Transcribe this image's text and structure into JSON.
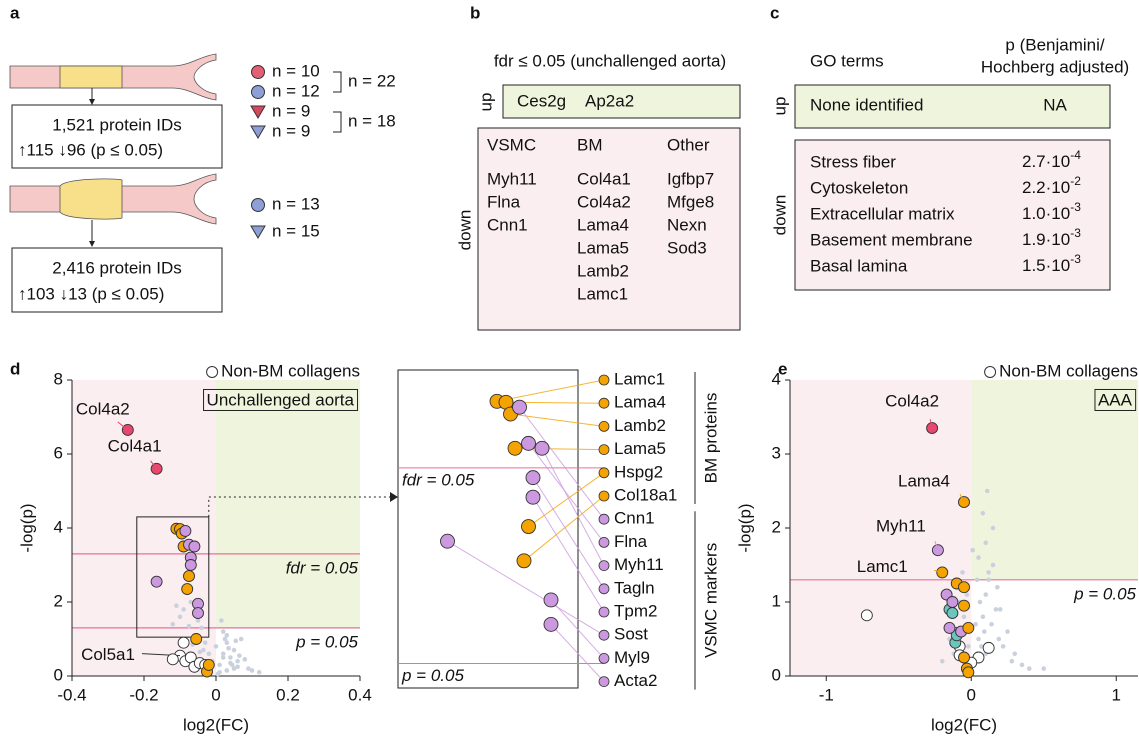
{
  "panel_a": {
    "label": "a",
    "groups": [
      {
        "legend": [
          {
            "marker": "circle",
            "color": "#e35f73",
            "text": "n = 10"
          },
          {
            "marker": "circle",
            "color": "#8e9fd6",
            "text": "n = 12"
          },
          {
            "marker": "triangle",
            "color": "#d9475d",
            "text": "n = 9"
          },
          {
            "marker": "triangle",
            "color": "#8e9fd6",
            "text": "n = 9"
          }
        ],
        "brackets": [
          {
            "text": "n = 22"
          },
          {
            "text": "n = 18"
          }
        ],
        "box": {
          "title": "1,521 protein IDs",
          "stats": "↑115  ↓96   (p ≤ 0.05)"
        }
      },
      {
        "legend": [
          {
            "marker": "circle",
            "color": "#8e9fd6",
            "text": "n = 13"
          },
          {
            "marker": "triangle",
            "color": "#8e9fd6",
            "text": "n = 15"
          }
        ],
        "box": {
          "title": "2,416 protein IDs",
          "stats": "↑103  ↓13   (p ≤ 0.05)"
        }
      }
    ]
  },
  "panel_b": {
    "label": "b",
    "title": "fdr ≤ 0.05 (unchallenged aorta)",
    "up": {
      "label": "up",
      "genes": [
        {
          "text": "Ces2g",
          "color": "#6a86b0"
        },
        {
          "text": "Ap2a2",
          "color": "#6a86b0"
        }
      ]
    },
    "down": {
      "label": "down",
      "columns": [
        {
          "header": "VSMC",
          "genes": [
            {
              "text": "Myh11",
              "color": "#a04db5"
            },
            {
              "text": "Flna",
              "color": "#a04db5"
            },
            {
              "text": "Cnn1",
              "color": "#a04db5"
            }
          ]
        },
        {
          "header": "BM",
          "genes": [
            {
              "text": "Col4a1",
              "color": "#e8486e"
            },
            {
              "text": "Col4a2",
              "color": "#e8486e"
            },
            {
              "text": "Lama4",
              "color": "#f0a000"
            },
            {
              "text": "Lama5",
              "color": "#f0a000"
            },
            {
              "text": "Lamb2",
              "color": "#f0a000"
            },
            {
              "text": "Lamc1",
              "color": "#f0a000"
            }
          ]
        },
        {
          "header": "Other",
          "genes": [
            {
              "text": "Igfbp7",
              "color": "#5bbcb4"
            },
            {
              "text": "Mfge8",
              "color": "#5bbcb4"
            },
            {
              "text": "Nexn",
              "color": "#5bbcb4"
            },
            {
              "text": "Sod3",
              "color": "#5bbcb4"
            }
          ]
        }
      ]
    }
  },
  "panel_c": {
    "label": "c",
    "header_term": "GO terms",
    "header_p": [
      "p (Benjamini/",
      "Hochberg adjusted)"
    ],
    "up": {
      "label": "up",
      "term": "None identified",
      "p": "NA"
    },
    "down": {
      "label": "down",
      "rows": [
        {
          "term": "Stress fiber",
          "color": "#a04db5",
          "p_base": "2.7·10",
          "p_exp": "-4"
        },
        {
          "term": "Cytoskeleton",
          "color": "#a04db5",
          "p_base": "2.2·10",
          "p_exp": "-2"
        },
        {
          "term": "Extracellular matrix",
          "color": "#f0a000",
          "p_base": "1.0·10",
          "p_exp": "-3"
        },
        {
          "term": "Basement membrane",
          "color": "#f0a000",
          "p_base": "1.9·10",
          "p_exp": "-3"
        },
        {
          "term": "Basal lamina",
          "color": "#f0a000",
          "p_base": "1.5·10",
          "p_exp": "-3"
        }
      ]
    }
  },
  "chart_data": [
    {
      "panel": "d",
      "type": "scatter",
      "title": "Unchallenged aorta",
      "xlabel": "log2(FC)",
      "ylabel": "-log(p)",
      "xlim": [
        -0.4,
        0.4
      ],
      "ylim": [
        0,
        8
      ],
      "xticks": [
        -0.4,
        -0.2,
        0,
        0.2,
        0.4
      ],
      "yticks": [
        0,
        2,
        4,
        6,
        8
      ],
      "legend": "top-right",
      "hlines": [
        {
          "value": 3.3,
          "label": "fdr = 0.05"
        },
        {
          "value": 1.3,
          "label": "p = 0.05"
        }
      ],
      "zoom": {
        "xlim": [
          -0.22,
          -0.02
        ],
        "ylim": [
          1.05,
          4.3
        ]
      },
      "series": [
        {
          "color": "#c9d1dc",
          "marker": "dot",
          "x": [
            0.01,
            0.02,
            0.03,
            0.04,
            0.05,
            0.06,
            0.07,
            0.02,
            0.03,
            0.05,
            0.01,
            0.0,
            -0.01,
            -0.02,
            -0.03,
            -0.04,
            -0.05,
            -0.06,
            -0.07,
            -0.08,
            -0.09,
            -0.1,
            -0.11,
            -0.12,
            0.03,
            0.04,
            0.06,
            0.08,
            0.09,
            0.1,
            0.12,
            0.02,
            0.015,
            0.035,
            0.055,
            -0.015,
            -0.035,
            -0.055,
            -0.075,
            0.045,
            0.065,
            0.025,
            -0.065,
            -0.045,
            0.005
          ],
          "values": [
            0.3,
            0.6,
            0.9,
            0.5,
            0.7,
            0.4,
            1.0,
            1.2,
            1.1,
            0.2,
            0.1,
            0.8,
            0.4,
            0.6,
            0.9,
            1.3,
            1.5,
            1.7,
            2.0,
            2.3,
            1.8,
            1.6,
            1.9,
            1.4,
            0.15,
            0.35,
            0.25,
            0.45,
            0.2,
            0.15,
            0.1,
            0.5,
            1.5,
            0.75,
            0.95,
            0.2,
            0.7,
            1.1,
            1.35,
            0.3,
            0.55,
            1.0,
            0.85,
            0.65,
            0.05
          ]
        },
        {
          "name": "Non-BM collagens",
          "color": "#ffffff",
          "x": [
            -0.1,
            -0.12,
            -0.085,
            -0.07,
            -0.06,
            -0.045,
            -0.03,
            -0.09
          ],
          "values": [
            0.55,
            0.45,
            0.4,
            0.5,
            0.25,
            0.35,
            0.3,
            0.9
          ],
          "labels": [
            "Col5a1",
            null,
            null,
            null,
            null,
            null,
            null,
            null
          ]
        },
        {
          "group": "BM proteins",
          "color": "#f5a300",
          "x": [
            -0.11,
            -0.1,
            -0.095,
            -0.09,
            -0.075,
            -0.08,
            -0.055,
            -0.025,
            -0.02
          ],
          "values": [
            3.98,
            3.97,
            3.85,
            3.5,
            2.7,
            2.35,
            1.0,
            0.12,
            0.3
          ],
          "labels": [
            "Lamc1",
            "Lama4",
            "Lamb2",
            "Lama5",
            "Hspg2",
            "Col18a1",
            null,
            null,
            null
          ]
        },
        {
          "group": "VSMC markers",
          "color": "#cc99e0",
          "x": [
            -0.085,
            -0.075,
            -0.06,
            -0.07,
            -0.07,
            -0.165,
            -0.05,
            -0.05
          ],
          "values": [
            3.92,
            3.55,
            3.5,
            3.2,
            3.0,
            2.55,
            1.95,
            1.7
          ],
          "labels": [
            "Cnn1",
            "Flna",
            "Myh11",
            "Tagln",
            "Tpm2",
            "Sost",
            "Myl9",
            "Acta2"
          ]
        },
        {
          "color": "#e8486e",
          "x": [
            -0.245,
            -0.165
          ],
          "values": [
            6.65,
            5.6
          ],
          "labels": [
            "Col4a2",
            "Col4a1"
          ]
        }
      ]
    },
    {
      "panel": "e",
      "type": "scatter",
      "title": "AAA",
      "xlabel": "log2(FC)",
      "ylabel": "-log(p)",
      "xlim": [
        -1.25,
        1.15
      ],
      "ylim": [
        0,
        4
      ],
      "xticks": [
        -1,
        0,
        1
      ],
      "yticks": [
        0,
        1,
        2,
        3,
        4
      ],
      "legend": "top-right",
      "hlines": [
        {
          "value": 1.3,
          "label": "p = 0.05"
        }
      ],
      "series": [
        {
          "color": "#c9d1dc",
          "marker": "dot",
          "x": [
            0.02,
            0.05,
            0.08,
            0.1,
            0.12,
            0.15,
            0.18,
            0.2,
            0.25,
            0.3,
            0.05,
            0.1,
            0.15,
            0.08,
            0.12,
            0.06,
            0.03,
            -0.02,
            -0.05,
            -0.08,
            -0.1,
            -0.12,
            -0.15,
            -0.2,
            0.22,
            0.28,
            0.35,
            0.4,
            0.1,
            0.07,
            0.04,
            0.14,
            0.17,
            0.09,
            -0.03,
            -0.06,
            0.01,
            0.11,
            0.19,
            0.5
          ],
          "values": [
            0.2,
            0.5,
            0.8,
            1.1,
            1.3,
            1.5,
            1.2,
            0.9,
            0.6,
            0.3,
            1.6,
            1.8,
            2.0,
            2.2,
            1.4,
            1.0,
            0.7,
            0.4,
            0.8,
            1.0,
            0.6,
            0.3,
            0.5,
            0.2,
            0.4,
            0.2,
            0.15,
            0.1,
            0.3,
            0.4,
            1.3,
            0.7,
            0.9,
            0.6,
            1.1,
            1.4,
            1.7,
            2.5,
            0.5,
            0.1
          ]
        },
        {
          "name": "Non-BM collagens",
          "color": "#ffffff",
          "x": [
            -0.72,
            -0.1,
            -0.08,
            0.05,
            0.12,
            -0.08,
            0.0
          ],
          "values": [
            0.82,
            0.58,
            0.4,
            0.25,
            0.38,
            0.28,
            0.18
          ]
        },
        {
          "color": "#6cc5bd",
          "x": [
            -0.15,
            -0.13,
            -0.11,
            -0.1
          ],
          "values": [
            0.9,
            0.85,
            0.45,
            0.55
          ]
        },
        {
          "color": "#cc99e0",
          "x": [
            -0.23,
            -0.17,
            -0.13,
            -0.15,
            -0.07
          ],
          "values": [
            1.7,
            1.1,
            1.0,
            0.65,
            0.6
          ],
          "labels": [
            "Myh11",
            null,
            null,
            null,
            null
          ]
        },
        {
          "color": "#f5a300",
          "x": [
            -0.05,
            -0.2,
            -0.1,
            -0.05,
            -0.05,
            -0.02,
            -0.05,
            -0.03,
            -0.02
          ],
          "values": [
            2.35,
            1.4,
            1.25,
            1.2,
            0.95,
            0.65,
            0.25,
            0.1,
            0.05
          ],
          "labels": [
            "Lama4",
            "Lamc1",
            null,
            null,
            null,
            null,
            null,
            null,
            null
          ]
        },
        {
          "color": "#e8486e",
          "x": [
            -0.27
          ],
          "values": [
            3.35
          ],
          "labels": [
            "Col4a2"
          ]
        }
      ]
    }
  ]
}
